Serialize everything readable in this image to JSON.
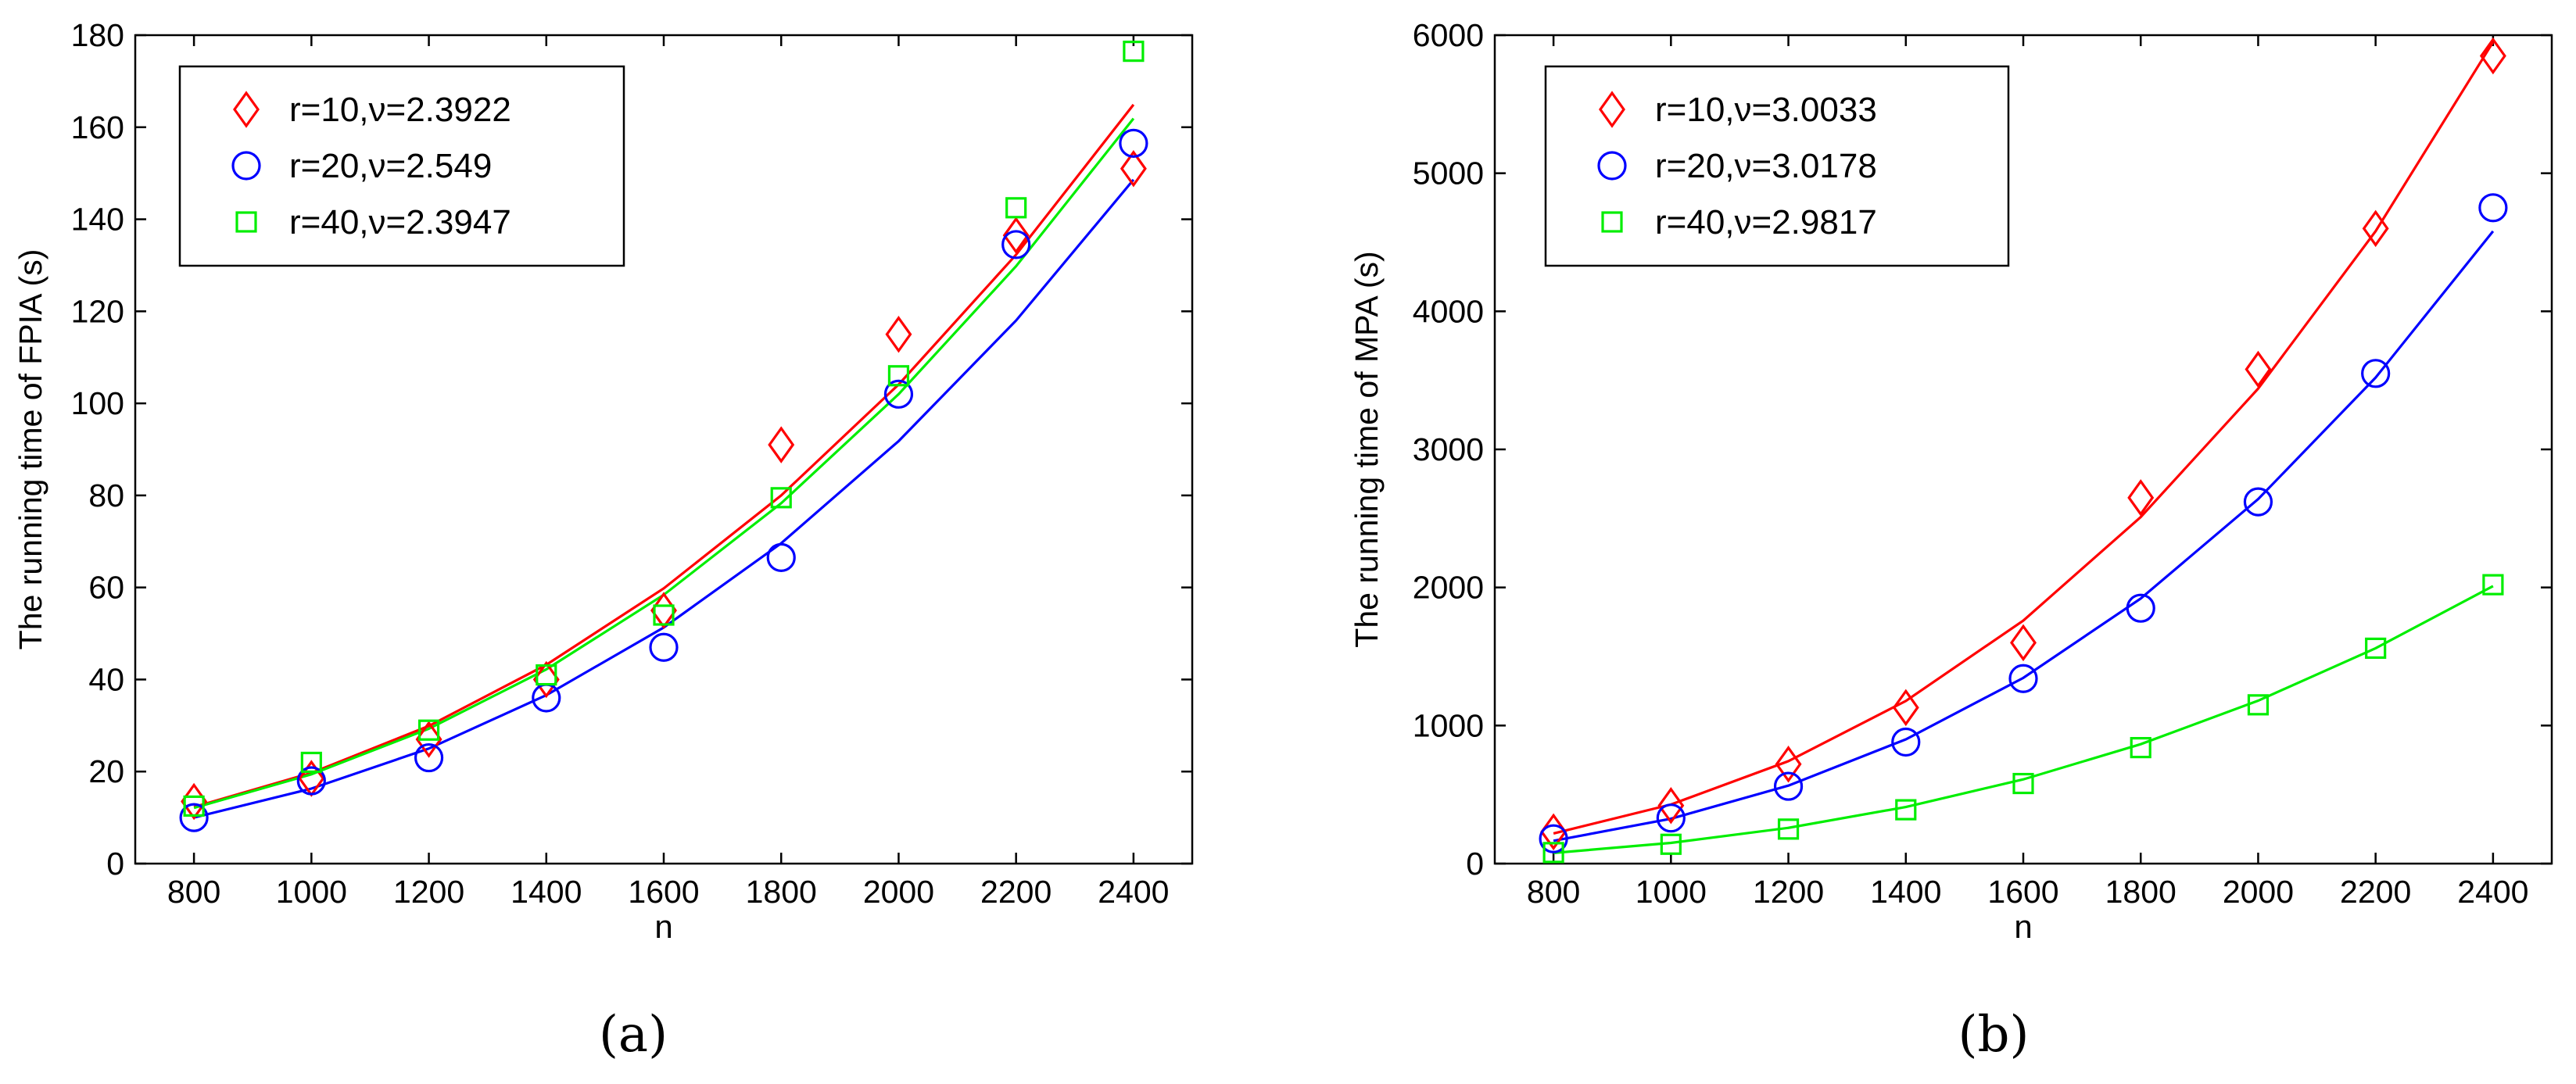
{
  "chart_data": [
    {
      "type": "scatter",
      "panel_label": "(a)",
      "xlabel": "n",
      "ylabel": "The running time of FPIA (s)",
      "xlim": [
        700,
        2500
      ],
      "ylim": [
        0,
        180
      ],
      "xticks": [
        800,
        1000,
        1200,
        1400,
        1600,
        1800,
        2000,
        2200,
        2400
      ],
      "yticks": [
        0,
        20,
        40,
        60,
        80,
        100,
        120,
        140,
        160,
        180
      ],
      "grid": false,
      "legend_position": "top-left",
      "x": [
        800,
        1000,
        1200,
        1400,
        1600,
        1800,
        2000,
        2200,
        2400
      ],
      "series": [
        {
          "name": "r=10,ν=2.3922",
          "color": "#ff0000",
          "marker": "diamond",
          "values": [
            13.5,
            18.5,
            27,
            40,
            55,
            91,
            115,
            136.5,
            151
          ],
          "fit": [
            12.3,
            19.7,
            29.9,
            43.2,
            59.8,
            80.0,
            104.1,
            132.3,
            164.9
          ]
        },
        {
          "name": "r=20,ν=2.549",
          "color": "#0000ff",
          "marker": "circle",
          "values": [
            10,
            18,
            23,
            36,
            47,
            66.5,
            102,
            134.5,
            156.5
          ],
          "fit": [
            10.0,
            16.3,
            25.0,
            36.6,
            51.3,
            69.6,
            91.8,
            118.0,
            148.6
          ]
        },
        {
          "name": "r=40,ν=2.3947",
          "color": "#00ee00",
          "marker": "square",
          "values": [
            12.5,
            22,
            29,
            41,
            54,
            79.5,
            106,
            142.5,
            176.5
          ],
          "fit": [
            12.1,
            19.4,
            29.3,
            42.2,
            58.4,
            78.3,
            102.0,
            129.8,
            161.9
          ]
        }
      ]
    },
    {
      "type": "scatter",
      "panel_label": "(b)",
      "xlabel": "n",
      "ylabel": "The running time of MPA (s)",
      "xlim": [
        700,
        2500
      ],
      "ylim": [
        0,
        6000
      ],
      "xticks": [
        800,
        1000,
        1200,
        1400,
        1600,
        1800,
        2000,
        2200,
        2400
      ],
      "yticks": [
        0,
        1000,
        2000,
        3000,
        4000,
        5000,
        6000
      ],
      "grid": false,
      "legend_position": "top-left",
      "x": [
        800,
        1000,
        1200,
        1400,
        1600,
        1800,
        2000,
        2200,
        2400
      ],
      "series": [
        {
          "name": "r=10,ν=3.0033",
          "color": "#ff0000",
          "marker": "diamond",
          "values": [
            230,
            420,
            720,
            1130,
            1600,
            2650,
            3580,
            4600,
            5850
          ],
          "fit": [
            218,
            428,
            742,
            1178,
            1760,
            2510,
            3440,
            4580,
            5950
          ]
        },
        {
          "name": "r=20,ν=3.0178",
          "color": "#0000ff",
          "marker": "circle",
          "values": [
            180,
            330,
            560,
            880,
            1340,
            1850,
            2620,
            3550,
            4750
          ],
          "fit": [
            165,
            325,
            565,
            900,
            1345,
            1920,
            2640,
            3520,
            4580
          ]
        },
        {
          "name": "r=40,ν=2.9817",
          "color": "#00ee00",
          "marker": "square",
          "values": [
            80,
            140,
            250,
            390,
            580,
            840,
            1150,
            1560,
            2020
          ],
          "fit": [
            77,
            150,
            259,
            410,
            610,
            865,
            1180,
            1560,
            2010
          ]
        }
      ]
    }
  ]
}
